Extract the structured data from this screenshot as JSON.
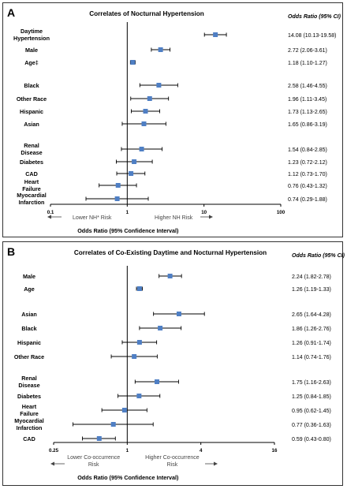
{
  "colors": {
    "marker": "#4f7fc4",
    "line": "#000000",
    "text": "#000000",
    "subtext": "#444444"
  },
  "chart_data": [
    {
      "type": "forest",
      "panel_label": "A",
      "title": "Correlates of Nocturnal Hypertension",
      "column_header": "Odds Ratio (95% CI)",
      "xlabel": "Odds Ratio (95% Confidence Interval)",
      "xscale": "log",
      "xlim": [
        0.1,
        100
      ],
      "xticks": [
        "0.1",
        "1",
        "10",
        "100"
      ],
      "left_direction": "Lower NH* Risk",
      "right_direction": "Higher NH Risk",
      "reference_line": 1,
      "rows": [
        {
          "label": "Daytime Hypertension",
          "or": 14.08,
          "lo": 10.13,
          "hi": 19.58,
          "text": "14.08 (10.13-19.58)"
        },
        {
          "label": "Male",
          "or": 2.72,
          "lo": 2.06,
          "hi": 3.61,
          "text": "2.72 (2.06-3.61)"
        },
        {
          "label": "Age‡",
          "or": 1.18,
          "lo": 1.1,
          "hi": 1.27,
          "text": "1.18 (1.10-1.27)"
        },
        {
          "label": "Black",
          "or": 2.58,
          "lo": 1.46,
          "hi": 4.55,
          "text": "2.58 (1.46-4.55)"
        },
        {
          "label": "Other Race",
          "or": 1.96,
          "lo": 1.11,
          "hi": 3.45,
          "text": "1.96 (1.11-3.45)"
        },
        {
          "label": "Hispanic",
          "or": 1.73,
          "lo": 1.13,
          "hi": 2.65,
          "text": "1.73 (1.13-2.65)"
        },
        {
          "label": "Asian",
          "or": 1.65,
          "lo": 0.86,
          "hi": 3.19,
          "text": "1.65 (0.86-3.19)"
        },
        {
          "label": "Renal Disease",
          "or": 1.54,
          "lo": 0.84,
          "hi": 2.85,
          "text": "1.54 (0.84-2.85)"
        },
        {
          "label": "Diabetes",
          "or": 1.23,
          "lo": 0.72,
          "hi": 2.12,
          "text": "1.23 (0.72-2.12)"
        },
        {
          "label": "CAD",
          "or": 1.12,
          "lo": 0.73,
          "hi": 1.7,
          "text": "1.12 (0.73-1.70)"
        },
        {
          "label": "Heart Failure",
          "or": 0.76,
          "lo": 0.43,
          "hi": 1.32,
          "text": "0.76 (0.43-1.32)"
        },
        {
          "label": "Myocardial Infarction",
          "or": 0.74,
          "lo": 0.29,
          "hi": 1.88,
          "text": "0.74 (0.29-1.88)"
        }
      ]
    },
    {
      "type": "forest",
      "panel_label": "B",
      "title": "Correlates of Co-Existing Daytime and Nocturnal Hypertension",
      "column_header": "Odds Ratio (95% CI)",
      "xlabel": "Odds Ratio (95% Confidence Interval)",
      "xscale": "log",
      "xlim": [
        0.25,
        16
      ],
      "xticks": [
        "0.25",
        "1",
        "4",
        "16"
      ],
      "left_direction": "Lower Co-occurrence Risk",
      "right_direction": "Higher Co-occurrence Risk",
      "reference_line": 1,
      "rows": [
        {
          "label": "Male",
          "or": 2.24,
          "lo": 1.82,
          "hi": 2.78,
          "text": "2.24 (1.82-2.78)"
        },
        {
          "label": "Age",
          "or": 1.26,
          "lo": 1.19,
          "hi": 1.33,
          "text": "1.26 (1.19-1.33)"
        },
        {
          "label": "Asian",
          "or": 2.65,
          "lo": 1.64,
          "hi": 4.28,
          "text": "2.65 (1.64-4.28)"
        },
        {
          "label": "Black",
          "or": 1.86,
          "lo": 1.26,
          "hi": 2.76,
          "text": "1.86 (1.26-2.76)"
        },
        {
          "label": "Hispanic",
          "or": 1.26,
          "lo": 0.91,
          "hi": 1.74,
          "text": "1.26 (0.91-1.74)"
        },
        {
          "label": "Other Race",
          "or": 1.14,
          "lo": 0.74,
          "hi": 1.76,
          "text": "1.14 (0.74-1.76)"
        },
        {
          "label": "Renal Disease",
          "or": 1.75,
          "lo": 1.16,
          "hi": 2.63,
          "text": "1.75 (1.16-2.63)"
        },
        {
          "label": "Diabetes",
          "or": 1.25,
          "lo": 0.84,
          "hi": 1.85,
          "text": "1.25 (0.84-1.85)"
        },
        {
          "label": "Heart Failure",
          "or": 0.95,
          "lo": 0.62,
          "hi": 1.45,
          "text": "0.95 (0.62-1.45)"
        },
        {
          "label": "Myocardial Infarction",
          "or": 0.77,
          "lo": 0.36,
          "hi": 1.63,
          "text": "0.77 (0.36-1.63)"
        },
        {
          "label": "CAD",
          "or": 0.59,
          "lo": 0.43,
          "hi": 0.8,
          "text": "0.59 (0.43-0.80)"
        }
      ]
    }
  ]
}
